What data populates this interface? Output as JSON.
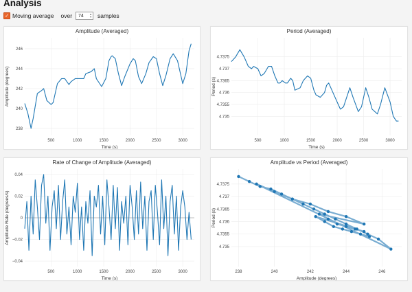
{
  "page": {
    "title": "Analysis",
    "moving_average_label": "Moving average",
    "moving_average_checked": true,
    "over_label": "over",
    "samples_value": "74",
    "samples_label": "samples",
    "accent_color": "#e8652a",
    "series_color": "#1f77b4"
  },
  "chart_data": [
    {
      "type": "line",
      "title": "Amplitude (Averaged)",
      "xlabel": "Time (s)",
      "ylabel": "Amplitude (degrees)",
      "xlim": [
        0,
        3220
      ],
      "ylim": [
        237.3,
        247.1
      ],
      "xticks": [
        500,
        1000,
        1500,
        2000,
        2500,
        3000
      ],
      "yticks": [
        238,
        240,
        242,
        244,
        246
      ],
      "xtick_labels": [
        "500",
        "1000",
        "1500",
        "2000",
        "2500",
        "3000"
      ],
      "ytick_labels": [
        "238",
        "240",
        "242",
        "244",
        "246"
      ],
      "grid": true,
      "series": [
        {
          "x": [
            0,
            60,
            120,
            160,
            240,
            320,
            360,
            420,
            500,
            540,
            620,
            700,
            760,
            840,
            880,
            960,
            1040,
            1120,
            1160,
            1260,
            1320,
            1360,
            1460,
            1540,
            1600,
            1640,
            1660,
            1720,
            1780,
            1840,
            1900,
            2000,
            2060,
            2100,
            2160,
            2220,
            2300,
            2360,
            2440,
            2500,
            2560,
            2620,
            2680,
            2760,
            2820,
            2900,
            3000,
            3060,
            3120,
            3160
          ],
          "y": [
            240.5,
            239.5,
            238.0,
            239.0,
            241.5,
            241.8,
            242.0,
            240.8,
            240.4,
            240.6,
            242.5,
            243.0,
            243.0,
            242.4,
            242.7,
            243.0,
            243.0,
            243.0,
            243.5,
            243.7,
            244.0,
            243.0,
            242.2,
            243.0,
            244.8,
            245.2,
            245.3,
            245.0,
            243.5,
            242.3,
            243.2,
            244.5,
            245.0,
            244.8,
            243.2,
            242.5,
            243.5,
            244.6,
            245.2,
            245.0,
            243.5,
            242.3,
            243.3,
            245.0,
            245.5,
            244.8,
            242.5,
            243.5,
            245.8,
            246.5
          ]
        }
      ]
    },
    {
      "type": "line",
      "title": "Period (Averaged)",
      "xlabel": "Time (s)",
      "ylabel": "Period (s)",
      "xlim": [
        0,
        3220
      ],
      "ylim": [
        4.7342,
        4.7383
      ],
      "xticks": [
        500,
        1000,
        1500,
        2000,
        2500,
        3000
      ],
      "yticks": [
        4.735,
        4.7355,
        4.736,
        4.7365,
        4.737,
        4.7375
      ],
      "xtick_labels": [
        "500",
        "1000",
        "1500",
        "2000",
        "2500",
        "3000"
      ],
      "ytick_labels": [
        "4.735",
        "4.7355",
        "4.736",
        "4.7365",
        "4.737",
        "4.7375"
      ],
      "grid": true,
      "series": [
        {
          "x": [
            0,
            80,
            160,
            240,
            320,
            380,
            420,
            500,
            560,
            620,
            700,
            760,
            820,
            880,
            920,
            960,
            1020,
            1060,
            1120,
            1160,
            1200,
            1300,
            1360,
            1440,
            1500,
            1560,
            1600,
            1680,
            1760,
            1800,
            1840,
            1900,
            2000,
            2060,
            2120,
            2180,
            2240,
            2300,
            2400,
            2460,
            2540,
            2600,
            2660,
            2760,
            2820,
            2900,
            3000,
            3060,
            3120,
            3160
          ],
          "y": [
            4.7373,
            4.7375,
            4.7378,
            4.7375,
            4.7371,
            4.737,
            4.7371,
            4.737,
            4.7367,
            4.7368,
            4.7371,
            4.7371,
            4.7367,
            4.7364,
            4.7364,
            4.7365,
            4.7364,
            4.7364,
            4.7366,
            4.7365,
            4.7361,
            4.7362,
            4.7365,
            4.7367,
            4.7366,
            4.7361,
            4.7359,
            4.7358,
            4.736,
            4.7363,
            4.7364,
            4.7361,
            4.7356,
            4.7353,
            4.7354,
            4.7358,
            4.7362,
            4.7358,
            4.7352,
            4.7354,
            4.7362,
            4.7358,
            4.7353,
            4.7351,
            4.7355,
            4.7362,
            4.7356,
            4.735,
            4.7348,
            4.7348
          ]
        }
      ]
    },
    {
      "type": "line",
      "title": "Rate of Change of Amplitude (Averaged)",
      "xlabel": "Time (s)",
      "ylabel": "Amplitude Rate (degrees/s)",
      "xlim": [
        0,
        3220
      ],
      "ylim": [
        -0.045,
        0.045
      ],
      "xticks": [
        500,
        1000,
        1500,
        2000,
        2500,
        3000
      ],
      "yticks": [
        -0.04,
        -0.02,
        0,
        0.02,
        0.04
      ],
      "xtick_labels": [
        "500",
        "1000",
        "1500",
        "2000",
        "2500",
        "3000"
      ],
      "ytick_labels": [
        "−0.04",
        "−0.02",
        "0",
        "0.02",
        "0.04"
      ],
      "grid": true,
      "zero_line": true,
      "series": [
        {
          "x": [
            0,
            40,
            80,
            120,
            160,
            200,
            240,
            280,
            320,
            360,
            400,
            440,
            480,
            520,
            560,
            600,
            640,
            680,
            720,
            760,
            800,
            840,
            880,
            920,
            960,
            1000,
            1040,
            1080,
            1120,
            1160,
            1200,
            1240,
            1280,
            1320,
            1360,
            1400,
            1440,
            1480,
            1520,
            1560,
            1600,
            1640,
            1680,
            1720,
            1760,
            1800,
            1840,
            1880,
            1920,
            1960,
            2000,
            2040,
            2080,
            2120,
            2160,
            2200,
            2240,
            2280,
            2320,
            2360,
            2400,
            2440,
            2480,
            2520,
            2560,
            2600,
            2640,
            2680,
            2720,
            2760,
            2800,
            2840,
            2880,
            2920,
            2960,
            3000,
            3040,
            3080,
            3120,
            3160
          ],
          "y": [
            -0.01,
            0.015,
            -0.03,
            0.02,
            -0.015,
            0.035,
            0.01,
            -0.02,
            0.03,
            0.04,
            -0.005,
            0.02,
            -0.03,
            0.01,
            0.025,
            -0.01,
            0.03,
            -0.02,
            0.015,
            0.035,
            -0.015,
            0.01,
            -0.025,
            0.02,
            0.005,
            0.032,
            -0.02,
            0.01,
            -0.03,
            0.015,
            -0.005,
            0.025,
            -0.035,
            0.02,
            0.01,
            0.03,
            -0.015,
            0.02,
            -0.025,
            0.035,
            0.01,
            -0.02,
            0.03,
            -0.01,
            0.028,
            -0.03,
            0.015,
            -0.005,
            0.02,
            -0.025,
            0.03,
            0.01,
            -0.02,
            0.025,
            -0.015,
            0.033,
            -0.01,
            0.02,
            -0.03,
            0.015,
            0.025,
            -0.02,
            0.03,
            0.005,
            -0.025,
            0.035,
            -0.01,
            0.02,
            -0.035,
            0.015,
            0.03,
            -0.015,
            0.02,
            -0.03,
            0.01,
            0.025,
            0.01,
            -0.02,
            0.005,
            -0.02
          ]
        }
      ]
    },
    {
      "type": "scatter",
      "title": "Amplitude vs Period (Averaged)",
      "xlabel": "Amplitude (degrees)",
      "ylabel": "Period (s)",
      "xlim": [
        237.6,
        247.1
      ],
      "ylim": [
        4.7342,
        4.7381
      ],
      "xticks": [
        238,
        240,
        242,
        244,
        246
      ],
      "yticks": [
        4.735,
        4.7355,
        4.736,
        4.7365,
        4.737,
        4.7375
      ],
      "xtick_labels": [
        "238",
        "240",
        "242",
        "244",
        "246"
      ],
      "ytick_labels": [
        "4.735",
        "4.7355",
        "4.736",
        "4.7365",
        "4.737",
        "4.7375"
      ],
      "grid": true,
      "series": [
        {
          "x": [
            238.0,
            238.6,
            239.2,
            239.8,
            240.4,
            241.0,
            241.6,
            242.2,
            242.8,
            243.4,
            244.0,
            244.6,
            245.2,
            245.8,
            246.5,
            239.0,
            240.0,
            241.0,
            242.0,
            243.0,
            244.0,
            245.0,
            242.5,
            243.0,
            243.5,
            244.0,
            244.5,
            245.0,
            242.3,
            242.8,
            243.3,
            243.8,
            244.3,
            244.8,
            245.3
          ],
          "y": [
            4.7378,
            4.7376,
            4.7374,
            4.7373,
            4.7371,
            4.7369,
            4.7367,
            4.7365,
            4.7363,
            4.7361,
            4.7359,
            4.7357,
            4.7355,
            4.7353,
            4.7349,
            4.7375,
            4.7372,
            4.7369,
            4.7367,
            4.7364,
            4.7362,
            4.7359,
            4.7363,
            4.7361,
            4.7359,
            4.7358,
            4.7357,
            4.7356,
            4.7362,
            4.736,
            4.7358,
            4.7357,
            4.7356,
            4.7355,
            4.7354
          ]
        }
      ]
    }
  ]
}
